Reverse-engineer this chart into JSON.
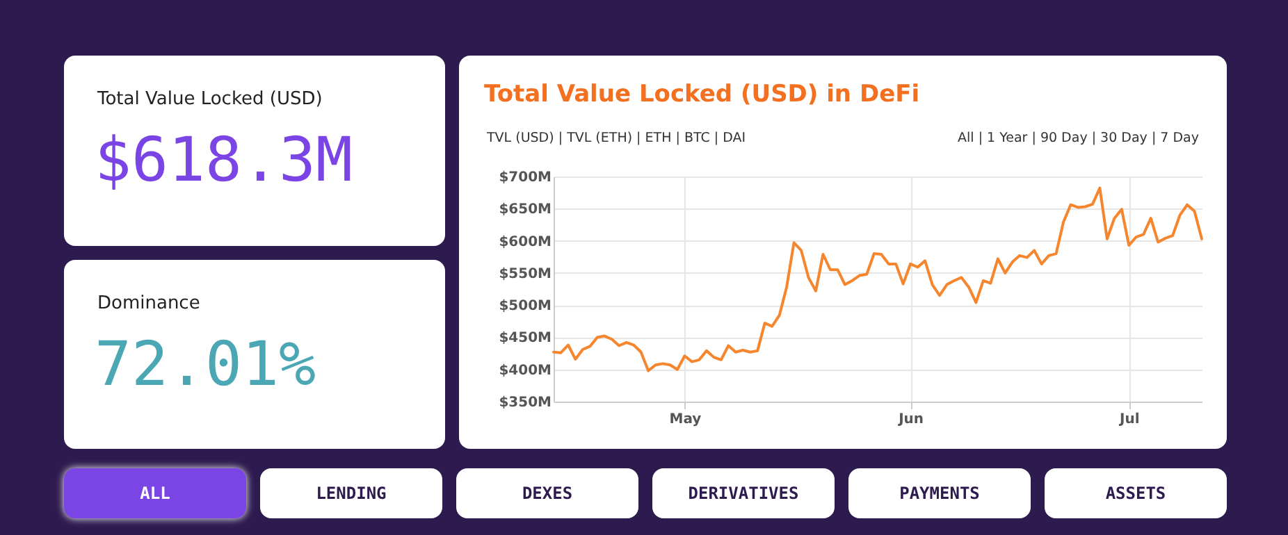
{
  "chart_data": [
    {
      "type": "other",
      "title": "Total Value Locked (USD)",
      "annotations": [
        "$618.3M"
      ],
      "color": "#7b45e6"
    },
    {
      "type": "other",
      "title": "Dominance",
      "annotations": [
        "72.01%"
      ],
      "color": "#4aa7b3"
    },
    {
      "type": "line",
      "title": "Total Value Locked (USD) in DeFi",
      "annotations": [
        "TVL (USD) | TVL (ETH) | ETH | BTC | DAI",
        "All | 1 Year | 90 Day | 30 Day | 7 Day"
      ],
      "x": [
        "--04-13",
        "--04-14",
        "--04-15",
        "--04-16",
        "--04-17",
        "--04-18",
        "--04-19",
        "--04-20",
        "--04-21",
        "--04-22",
        "--04-23",
        "--04-24",
        "--04-25",
        "--04-26",
        "--04-27",
        "--04-28",
        "--04-29",
        "--04-30",
        "--05-01",
        "--05-02",
        "--05-03",
        "--05-04",
        "--05-05",
        "--05-06",
        "--05-07",
        "--05-08",
        "--05-09",
        "--05-10",
        "--05-11",
        "--05-12",
        "--05-13",
        "--05-14",
        "--05-15",
        "--05-16",
        "--05-17",
        "--05-18",
        "--05-19",
        "--05-20",
        "--05-21",
        "--05-22",
        "--05-23",
        "--05-24",
        "--05-25",
        "--05-26",
        "--05-27",
        "--05-28",
        "--05-29",
        "--05-30",
        "--05-31",
        "--06-01",
        "--06-02",
        "--06-03",
        "--06-04",
        "--06-05",
        "--06-06",
        "--06-07",
        "--06-08",
        "--06-09",
        "--06-10",
        "--06-11",
        "--06-12",
        "--06-13",
        "--06-14",
        "--06-15",
        "--06-16",
        "--06-17",
        "--06-18",
        "--06-19",
        "--06-20",
        "--06-21",
        "--06-22",
        "--06-23",
        "--06-24",
        "--06-25",
        "--06-26",
        "--06-27",
        "--06-28",
        "--06-29",
        "--06-30",
        "--07-01",
        "--07-02",
        "--07-03",
        "--07-04",
        "--07-05",
        "--07-06",
        "--07-07",
        "--07-08",
        "--07-09",
        "--07-10",
        "--07-11"
      ],
      "series": [
        {
          "color": "#f5862e",
          "values": [
            427,
            426,
            438,
            416,
            431,
            436,
            450,
            452,
            447,
            437,
            442,
            438,
            427,
            398,
            407,
            409,
            407,
            400,
            421,
            412,
            415,
            429,
            419,
            415,
            437,
            427,
            430,
            427,
            429,
            472,
            467,
            484,
            528,
            597,
            585,
            543,
            522,
            579,
            555,
            555,
            532,
            538,
            546,
            548,
            580,
            579,
            564,
            564,
            533,
            564,
            559,
            569,
            532,
            515,
            532,
            538,
            543,
            528,
            504,
            538,
            534,
            572,
            550,
            567,
            577,
            574,
            585,
            564,
            577,
            580,
            629,
            656,
            652,
            653,
            657,
            682,
            603,
            635,
            649,
            593,
            606,
            610,
            635,
            598,
            604,
            608,
            640,
            656,
            646,
            603
          ]
        }
      ],
      "xlim": [
        "--04-13",
        "--07-11"
      ],
      "xticks": [
        {
          "value": "--05-01",
          "label": "May"
        },
        {
          "value": "--06-01",
          "label": "Jun"
        },
        {
          "value": "--07-01",
          "label": "Jul"
        }
      ],
      "ylim": [
        350,
        700
      ],
      "yticks": [
        {
          "value": 350,
          "label": "$350M"
        },
        {
          "value": 400,
          "label": "$400M"
        },
        {
          "value": 450,
          "label": "$450M"
        },
        {
          "value": 500,
          "label": "$500M"
        },
        {
          "value": 550,
          "label": "$550M"
        },
        {
          "value": 600,
          "label": "$600M"
        },
        {
          "value": 650,
          "label": "$650M"
        },
        {
          "value": 700,
          "label": "$700M"
        }
      ],
      "grid": true,
      "marker": "none",
      "line_style": "solid"
    },
    {
      "type": "other",
      "annotations": [
        "ALL",
        "LENDING",
        "DEXES",
        "DERIVATIVES",
        "PAYMENTS",
        "ASSETS"
      ]
    }
  ]
}
